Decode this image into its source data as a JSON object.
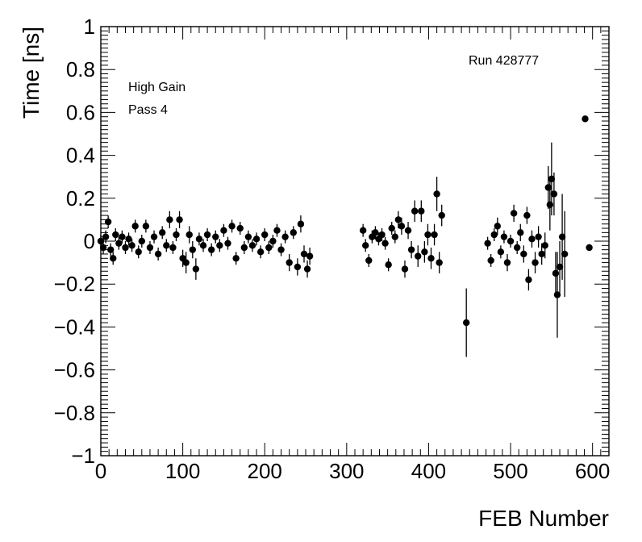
{
  "chart_data": {
    "type": "scatter",
    "title": "",
    "xlabel": "FEB Number",
    "ylabel": "Time [ns]",
    "xlim": [
      0,
      620
    ],
    "ylim": [
      -1,
      1
    ],
    "x_ticks": [
      0,
      100,
      200,
      300,
      400,
      500,
      600
    ],
    "y_ticks": [
      -1,
      -0.8,
      -0.6,
      -0.4,
      -0.2,
      0,
      0.2,
      0.4,
      0.6,
      0.8,
      1
    ],
    "x_tick_labels": [
      "0",
      "100",
      "200",
      "300",
      "400",
      "500",
      "600"
    ],
    "y_tick_labels": [
      "−1",
      "−0.8",
      "−0.6",
      "−0.4",
      "−0.2",
      "0",
      "0.2",
      "0.4",
      "0.6",
      "0.8",
      "1"
    ],
    "grid": false,
    "error_bars": true,
    "annotations": [
      "High Gain",
      "Pass 4",
      "Run 428777"
    ],
    "series": [
      {
        "marker": "circle",
        "color": "#000000",
        "points": [
          {
            "x": 0,
            "y": 0.0,
            "err": 0.03
          },
          {
            "x": 3,
            "y": -0.03,
            "err": 0.03
          },
          {
            "x": 6,
            "y": 0.02,
            "err": 0.03
          },
          {
            "x": 9,
            "y": 0.09,
            "err": 0.03
          },
          {
            "x": 12,
            "y": -0.04,
            "err": 0.03
          },
          {
            "x": 15,
            "y": -0.08,
            "err": 0.03
          },
          {
            "x": 18,
            "y": 0.03,
            "err": 0.03
          },
          {
            "x": 22,
            "y": -0.01,
            "err": 0.03
          },
          {
            "x": 26,
            "y": 0.02,
            "err": 0.03
          },
          {
            "x": 30,
            "y": -0.03,
            "err": 0.03
          },
          {
            "x": 34,
            "y": 0.01,
            "err": 0.03
          },
          {
            "x": 38,
            "y": -0.02,
            "err": 0.03
          },
          {
            "x": 42,
            "y": 0.07,
            "err": 0.03
          },
          {
            "x": 46,
            "y": -0.05,
            "err": 0.03
          },
          {
            "x": 50,
            "y": 0.0,
            "err": 0.03
          },
          {
            "x": 55,
            "y": 0.07,
            "err": 0.03
          },
          {
            "x": 60,
            "y": -0.03,
            "err": 0.03
          },
          {
            "x": 65,
            "y": 0.02,
            "err": 0.03
          },
          {
            "x": 70,
            "y": -0.06,
            "err": 0.03
          },
          {
            "x": 75,
            "y": 0.04,
            "err": 0.03
          },
          {
            "x": 80,
            "y": -0.02,
            "err": 0.03
          },
          {
            "x": 84,
            "y": 0.1,
            "err": 0.04
          },
          {
            "x": 88,
            "y": -0.03,
            "err": 0.03
          },
          {
            "x": 92,
            "y": 0.03,
            "err": 0.03
          },
          {
            "x": 96,
            "y": 0.1,
            "err": 0.04
          },
          {
            "x": 100,
            "y": -0.08,
            "err": 0.04
          },
          {
            "x": 104,
            "y": -0.1,
            "err": 0.05
          },
          {
            "x": 108,
            "y": 0.03,
            "err": 0.04
          },
          {
            "x": 112,
            "y": -0.04,
            "err": 0.04
          },
          {
            "x": 116,
            "y": -0.13,
            "err": 0.05
          },
          {
            "x": 120,
            "y": 0.01,
            "err": 0.03
          },
          {
            "x": 125,
            "y": -0.02,
            "err": 0.03
          },
          {
            "x": 130,
            "y": 0.03,
            "err": 0.03
          },
          {
            "x": 135,
            "y": -0.04,
            "err": 0.03
          },
          {
            "x": 140,
            "y": 0.02,
            "err": 0.03
          },
          {
            "x": 145,
            "y": -0.02,
            "err": 0.03
          },
          {
            "x": 150,
            "y": 0.05,
            "err": 0.03
          },
          {
            "x": 155,
            "y": -0.01,
            "err": 0.03
          },
          {
            "x": 160,
            "y": 0.07,
            "err": 0.03
          },
          {
            "x": 165,
            "y": -0.08,
            "err": 0.03
          },
          {
            "x": 170,
            "y": 0.06,
            "err": 0.03
          },
          {
            "x": 175,
            "y": -0.03,
            "err": 0.03
          },
          {
            "x": 180,
            "y": 0.02,
            "err": 0.03
          },
          {
            "x": 185,
            "y": -0.02,
            "err": 0.03
          },
          {
            "x": 190,
            "y": 0.01,
            "err": 0.03
          },
          {
            "x": 195,
            "y": -0.05,
            "err": 0.03
          },
          {
            "x": 200,
            "y": 0.03,
            "err": 0.03
          },
          {
            "x": 205,
            "y": -0.03,
            "err": 0.03
          },
          {
            "x": 210,
            "y": 0.0,
            "err": 0.03
          },
          {
            "x": 215,
            "y": 0.05,
            "err": 0.03
          },
          {
            "x": 220,
            "y": -0.04,
            "err": 0.03
          },
          {
            "x": 225,
            "y": 0.02,
            "err": 0.03
          },
          {
            "x": 230,
            "y": -0.1,
            "err": 0.04
          },
          {
            "x": 235,
            "y": 0.04,
            "err": 0.03
          },
          {
            "x": 240,
            "y": -0.12,
            "err": 0.04
          },
          {
            "x": 244,
            "y": 0.08,
            "err": 0.04
          },
          {
            "x": 248,
            "y": -0.06,
            "err": 0.04
          },
          {
            "x": 252,
            "y": -0.13,
            "err": 0.04
          },
          {
            "x": 255,
            "y": -0.07,
            "err": 0.04
          },
          {
            "x": 320,
            "y": 0.05,
            "err": 0.03
          },
          {
            "x": 323,
            "y": -0.02,
            "err": 0.03
          },
          {
            "x": 327,
            "y": -0.09,
            "err": 0.03
          },
          {
            "x": 331,
            "y": 0.02,
            "err": 0.03
          },
          {
            "x": 335,
            "y": 0.04,
            "err": 0.03
          },
          {
            "x": 339,
            "y": 0.01,
            "err": 0.03
          },
          {
            "x": 343,
            "y": 0.03,
            "err": 0.03
          },
          {
            "x": 347,
            "y": -0.01,
            "err": 0.03
          },
          {
            "x": 351,
            "y": -0.11,
            "err": 0.03
          },
          {
            "x": 355,
            "y": 0.06,
            "err": 0.03
          },
          {
            "x": 359,
            "y": 0.02,
            "err": 0.03
          },
          {
            "x": 363,
            "y": 0.1,
            "err": 0.04
          },
          {
            "x": 367,
            "y": 0.07,
            "err": 0.04
          },
          {
            "x": 371,
            "y": -0.13,
            "err": 0.04
          },
          {
            "x": 375,
            "y": 0.05,
            "err": 0.04
          },
          {
            "x": 379,
            "y": -0.04,
            "err": 0.04
          },
          {
            "x": 383,
            "y": 0.14,
            "err": 0.05
          },
          {
            "x": 387,
            "y": -0.07,
            "err": 0.05
          },
          {
            "x": 391,
            "y": 0.14,
            "err": 0.05
          },
          {
            "x": 395,
            "y": -0.05,
            "err": 0.05
          },
          {
            "x": 399,
            "y": 0.03,
            "err": 0.05
          },
          {
            "x": 403,
            "y": -0.08,
            "err": 0.05
          },
          {
            "x": 407,
            "y": 0.03,
            "err": 0.05
          },
          {
            "x": 410,
            "y": 0.22,
            "err": 0.08
          },
          {
            "x": 413,
            "y": -0.1,
            "err": 0.05
          },
          {
            "x": 416,
            "y": 0.12,
            "err": 0.05
          },
          {
            "x": 446,
            "y": -0.38,
            "err": 0.16
          },
          {
            "x": 472,
            "y": -0.01,
            "err": 0.03
          },
          {
            "x": 476,
            "y": -0.09,
            "err": 0.03
          },
          {
            "x": 480,
            "y": 0.03,
            "err": 0.03
          },
          {
            "x": 484,
            "y": 0.07,
            "err": 0.04
          },
          {
            "x": 488,
            "y": -0.05,
            "err": 0.03
          },
          {
            "x": 492,
            "y": 0.02,
            "err": 0.03
          },
          {
            "x": 496,
            "y": -0.1,
            "err": 0.04
          },
          {
            "x": 500,
            "y": 0.0,
            "err": 0.03
          },
          {
            "x": 504,
            "y": 0.13,
            "err": 0.04
          },
          {
            "x": 508,
            "y": -0.03,
            "err": 0.03
          },
          {
            "x": 512,
            "y": 0.04,
            "err": 0.04
          },
          {
            "x": 516,
            "y": -0.06,
            "err": 0.04
          },
          {
            "x": 520,
            "y": 0.12,
            "err": 0.04
          },
          {
            "x": 522,
            "y": -0.18,
            "err": 0.05
          },
          {
            "x": 526,
            "y": 0.01,
            "err": 0.04
          },
          {
            "x": 530,
            "y": -0.1,
            "err": 0.05
          },
          {
            "x": 534,
            "y": 0.02,
            "err": 0.05
          },
          {
            "x": 538,
            "y": -0.06,
            "err": 0.05
          },
          {
            "x": 542,
            "y": -0.02,
            "err": 0.06
          },
          {
            "x": 546,
            "y": 0.25,
            "err": 0.1
          },
          {
            "x": 548,
            "y": 0.17,
            "err": 0.12
          },
          {
            "x": 550,
            "y": 0.29,
            "err": 0.17
          },
          {
            "x": 553,
            "y": 0.22,
            "err": 0.1
          },
          {
            "x": 555,
            "y": -0.15,
            "err": 0.1
          },
          {
            "x": 557,
            "y": -0.25,
            "err": 0.2
          },
          {
            "x": 560,
            "y": -0.12,
            "err": 0.12
          },
          {
            "x": 563,
            "y": 0.02,
            "err": 0.2
          },
          {
            "x": 566,
            "y": -0.06,
            "err": 0.2
          },
          {
            "x": 591,
            "y": 0.57,
            "err": 0.0
          },
          {
            "x": 596,
            "y": -0.03,
            "err": 0.0
          }
        ]
      }
    ]
  }
}
